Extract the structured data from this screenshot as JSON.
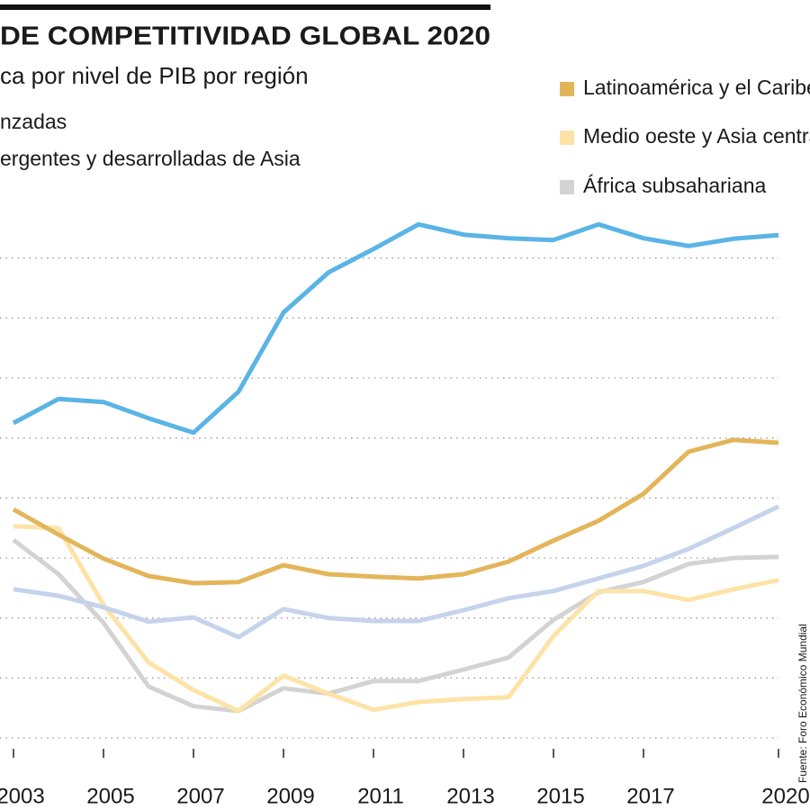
{
  "chart_data": {
    "type": "line",
    "title": "DE COMPETITIVIDAD GLOBAL 2020",
    "subtitle": "ca por nivel de PIB por región",
    "source": "Fuente: Foro Económico Mundial",
    "x": [
      2003,
      2004,
      2005,
      2006,
      2007,
      2008,
      2009,
      2010,
      2011,
      2012,
      2013,
      2014,
      2015,
      2016,
      2017,
      2018,
      2019,
      2020
    ],
    "xlim": [
      2002.7,
      2020.7
    ],
    "xticks": [
      2003,
      2005,
      2007,
      2009,
      2011,
      2013,
      2015,
      2017,
      2020
    ],
    "ylim": [
      0,
      9
    ],
    "yticks": [
      0,
      1,
      2,
      3,
      4,
      5,
      6,
      7,
      8
    ],
    "grid": true,
    "series": [
      {
        "name": "África subsahariana",
        "color": "#d3d3d3",
        "values": [
          3.3,
          2.73,
          1.92,
          0.86,
          0.53,
          0.45,
          0.83,
          0.74,
          0.95,
          0.95,
          1.14,
          1.34,
          1.97,
          2.43,
          2.6,
          2.9,
          3.0,
          3.02
        ]
      },
      {
        "name": "Medio oeste y Asia central",
        "color": "#fde3a7",
        "values": [
          3.53,
          3.5,
          2.22,
          1.26,
          0.8,
          0.45,
          1.04,
          0.74,
          0.47,
          0.6,
          0.65,
          0.68,
          1.7,
          2.45,
          2.45,
          2.3,
          2.48,
          2.63
        ]
      },
      {
        "name": "ergentes y desarrolladas de Asia",
        "color": "#c5d3ec",
        "values": [
          2.48,
          2.37,
          2.18,
          1.94,
          2.01,
          1.68,
          2.15,
          2.0,
          1.95,
          1.95,
          2.13,
          2.33,
          2.45,
          2.66,
          2.87,
          3.15,
          3.5,
          3.86
        ]
      },
      {
        "name": "Latinoamérica y el Caribe",
        "color": "#e3b55a",
        "values": [
          3.81,
          3.39,
          2.99,
          2.7,
          2.58,
          2.6,
          2.88,
          2.73,
          2.69,
          2.66,
          2.73,
          2.94,
          3.29,
          3.62,
          4.07,
          4.77,
          4.97,
          4.92
        ]
      },
      {
        "name": "nzadas",
        "color": "#5ab4e5",
        "values": [
          5.25,
          5.65,
          5.6,
          5.33,
          5.09,
          5.77,
          7.09,
          7.76,
          8.15,
          8.56,
          8.39,
          8.33,
          8.3,
          8.56,
          8.33,
          8.2,
          8.32,
          8.38
        ]
      }
    ]
  }
}
